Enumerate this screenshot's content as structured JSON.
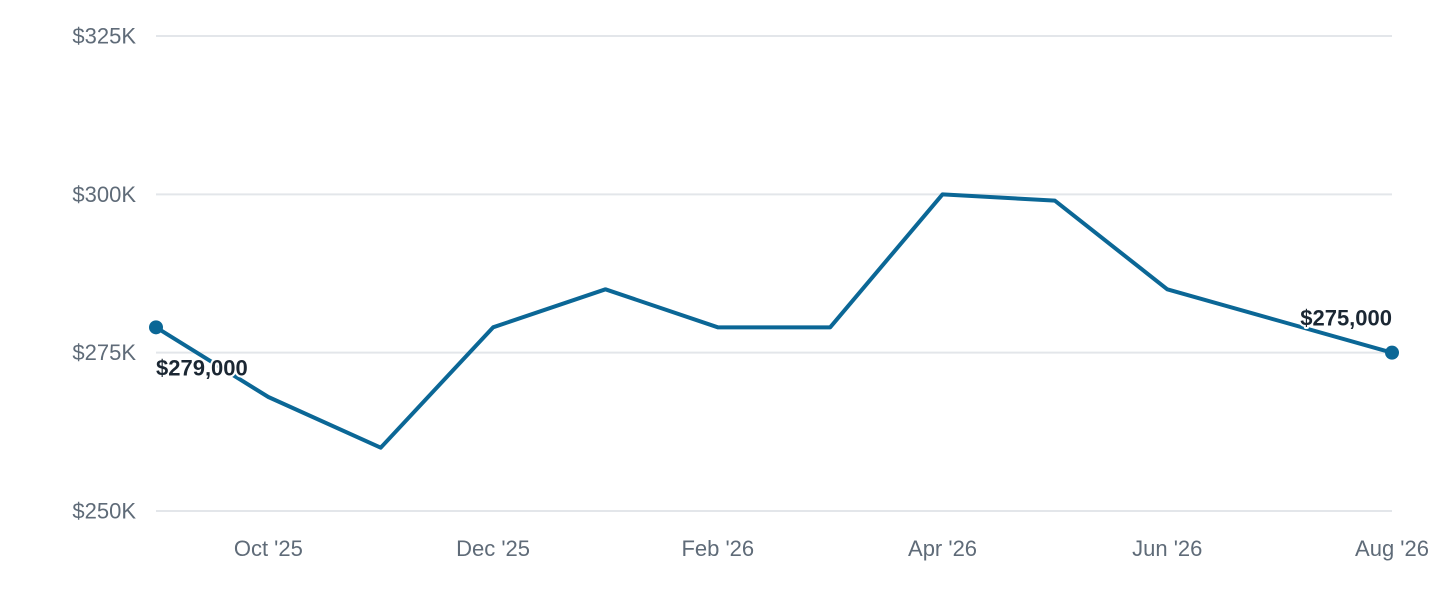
{
  "chart_data": {
    "type": "line",
    "x": [
      "2025-09",
      "2025-10",
      "2025-11",
      "2025-12",
      "2026-01",
      "2026-02",
      "2026-03",
      "2026-04",
      "2026-05",
      "2026-06",
      "2026-07",
      "2026-08"
    ],
    "values": [
      279000,
      268000,
      260000,
      279000,
      285000,
      279000,
      279000,
      300000,
      299000,
      285000,
      280000,
      275000
    ],
    "ylim": [
      250000,
      325000
    ],
    "y_ticks": [
      250000,
      275000,
      300000,
      325000
    ],
    "y_tick_labels": [
      "$250K",
      "$275K",
      "$300K",
      "$325K"
    ],
    "x_ticks": [
      "2025-10",
      "2025-12",
      "2026-02",
      "2026-04",
      "2026-06",
      "2026-08"
    ],
    "x_tick_labels": [
      "Oct '25",
      "Dec '25",
      "Feb '26",
      "Apr '26",
      "Jun '26",
      "Aug '26"
    ],
    "data_labels": [
      {
        "x": "2025-09",
        "text": "$279,000"
      },
      {
        "x": "2026-08",
        "text": "$275,000"
      }
    ],
    "marked_points": [
      "2025-09",
      "2026-08"
    ],
    "grid": true,
    "legend": "none",
    "line_color": "#0b6796"
  }
}
